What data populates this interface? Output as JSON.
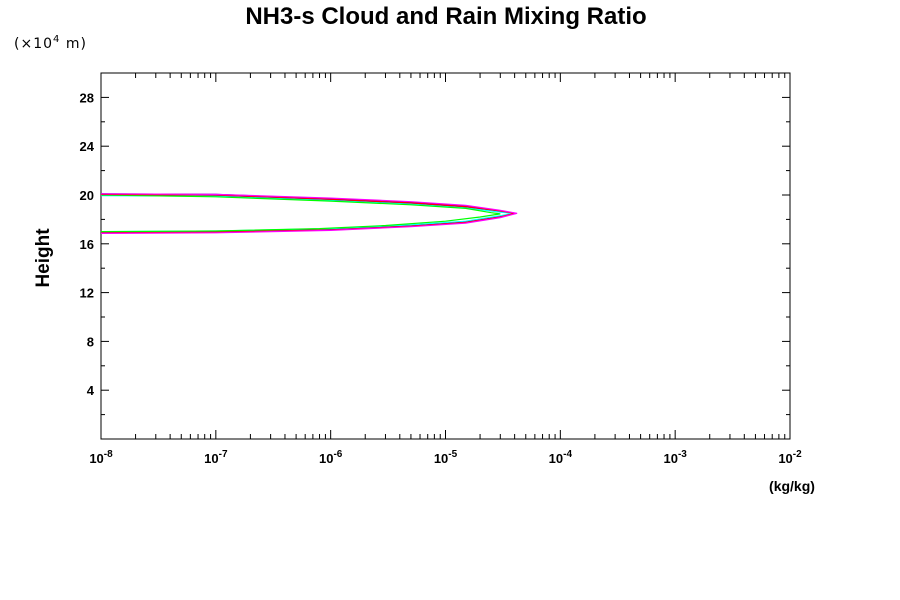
{
  "chart_data": {
    "type": "line",
    "title": "NH3-s Cloud and Rain Mixing Ratio",
    "ylabel": "Height",
    "xlabel_unit": "(kg/kg)",
    "y_scale_note": {
      "prefix": "(×10",
      "exponent": "4",
      "suffix": " m)"
    },
    "x_scale": "log",
    "xlim": [
      1e-08,
      0.01
    ],
    "ylim": [
      0,
      30
    ],
    "x_ticks": [
      {
        "base": "10",
        "exp": "-8",
        "value": 1e-08
      },
      {
        "base": "10",
        "exp": "-7",
        "value": 1e-07
      },
      {
        "base": "10",
        "exp": "-6",
        "value": 1e-06
      },
      {
        "base": "10",
        "exp": "-5",
        "value": 1e-05
      },
      {
        "base": "10",
        "exp": "-4",
        "value": 0.0001
      },
      {
        "base": "10",
        "exp": "-3",
        "value": 0.001
      },
      {
        "base": "10",
        "exp": "-2",
        "value": 0.01
      }
    ],
    "y_ticks": [
      "4",
      "8",
      "12",
      "16",
      "20",
      "24",
      "28"
    ],
    "y_tick_values": [
      4,
      8,
      12,
      16,
      20,
      24,
      28
    ],
    "y_minor_step": 2,
    "grid": false,
    "series": [
      {
        "color": "#000080",
        "points": [
          [
            1e-08,
            20.1
          ],
          [
            1e-07,
            20.05
          ],
          [
            1e-06,
            19.7
          ],
          [
            5e-06,
            19.4
          ],
          [
            1.5e-05,
            19.1
          ],
          [
            3e-05,
            18.7
          ],
          [
            4.1e-05,
            18.5
          ],
          [
            3e-05,
            18.2
          ],
          [
            1.5e-05,
            17.75
          ],
          [
            5e-06,
            17.45
          ],
          [
            1e-06,
            17.15
          ],
          [
            1e-07,
            16.95
          ],
          [
            1e-08,
            16.9
          ]
        ]
      },
      {
        "color": "#0000ff",
        "points": [
          [
            1e-08,
            20.0
          ],
          [
            1e-07,
            19.95
          ],
          [
            1e-06,
            19.6
          ],
          [
            5e-06,
            19.3
          ],
          [
            1.5e-05,
            19.0
          ],
          [
            3e-05,
            18.65
          ],
          [
            4e-05,
            18.5
          ],
          [
            3e-05,
            18.25
          ],
          [
            1.5e-05,
            17.8
          ],
          [
            5e-06,
            17.5
          ],
          [
            1e-06,
            17.2
          ],
          [
            1e-07,
            17.0
          ],
          [
            1e-08,
            16.95
          ]
        ]
      },
      {
        "color": "#00ffff",
        "points": [
          [
            1e-08,
            19.95
          ],
          [
            1e-07,
            19.9
          ],
          [
            1e-06,
            19.55
          ],
          [
            5e-06,
            19.25
          ],
          [
            1.5e-05,
            18.95
          ],
          [
            3e-05,
            18.6
          ],
          [
            3.9e-05,
            18.5
          ],
          [
            3e-05,
            18.3
          ],
          [
            1.5e-05,
            17.85
          ],
          [
            5e-06,
            17.55
          ],
          [
            1e-06,
            17.25
          ],
          [
            1e-07,
            17.05
          ],
          [
            1e-08,
            17.0
          ]
        ]
      },
      {
        "color": "#00ff00",
        "points": [
          [
            1e-08,
            20.0
          ],
          [
            1e-07,
            19.85
          ],
          [
            1e-06,
            19.5
          ],
          [
            5e-06,
            19.2
          ],
          [
            1.5e-05,
            18.9
          ],
          [
            2.5e-05,
            18.55
          ],
          [
            3e-05,
            18.45
          ],
          [
            2e-05,
            18.2
          ],
          [
            1e-05,
            17.85
          ],
          [
            3e-06,
            17.5
          ],
          [
            8e-07,
            17.25
          ],
          [
            1e-07,
            17.05
          ],
          [
            1e-08,
            17.0
          ]
        ]
      },
      {
        "color": "#ff0000",
        "points": [
          [
            1e-08,
            20.05
          ],
          [
            1e-07,
            20.0
          ],
          [
            1e-06,
            19.65
          ],
          [
            5e-06,
            19.35
          ],
          [
            1.5e-05,
            19.05
          ],
          [
            3e-05,
            18.7
          ],
          [
            4e-05,
            18.5
          ],
          [
            3e-05,
            18.2
          ],
          [
            1.5e-05,
            17.75
          ],
          [
            5e-06,
            17.45
          ],
          [
            1e-06,
            17.15
          ],
          [
            1e-07,
            16.95
          ],
          [
            1e-08,
            16.9
          ]
        ]
      },
      {
        "color": "#ff00ff",
        "points": [
          [
            1e-08,
            20.1
          ],
          [
            1e-07,
            20.05
          ],
          [
            1e-06,
            19.75
          ],
          [
            5e-06,
            19.45
          ],
          [
            1.5e-05,
            19.15
          ],
          [
            3e-05,
            18.75
          ],
          [
            4.2e-05,
            18.5
          ],
          [
            3e-05,
            18.15
          ],
          [
            1.5e-05,
            17.7
          ],
          [
            5e-06,
            17.4
          ],
          [
            1e-06,
            17.1
          ],
          [
            1e-07,
            16.9
          ],
          [
            1e-08,
            16.85
          ]
        ]
      }
    ]
  }
}
